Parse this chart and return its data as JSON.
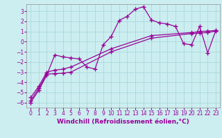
{
  "title": "",
  "xlabel": "Windchill (Refroidissement éolien,°C)",
  "ylabel": "",
  "bg_color": "#cceef0",
  "line_color": "#990099",
  "grid_color": "#aad8dc",
  "xlim": [
    -0.5,
    23.5
  ],
  "ylim": [
    -6.5,
    3.7
  ],
  "yticks": [
    -6,
    -5,
    -4,
    -3,
    -2,
    -1,
    0,
    1,
    2,
    3
  ],
  "xticks": [
    0,
    1,
    2,
    3,
    4,
    5,
    6,
    7,
    8,
    9,
    10,
    11,
    12,
    13,
    14,
    15,
    16,
    17,
    18,
    19,
    20,
    21,
    22,
    23
  ],
  "line1_x": [
    0,
    1,
    2,
    3,
    4,
    5,
    6,
    7,
    8,
    9,
    10,
    11,
    12,
    13,
    14,
    15,
    16,
    17,
    18,
    19,
    20,
    21,
    22,
    23
  ],
  "line1_y": [
    -6.0,
    -4.8,
    -3.3,
    -1.3,
    -1.5,
    -1.6,
    -1.7,
    -2.5,
    -2.7,
    -0.3,
    0.5,
    2.1,
    2.5,
    3.2,
    3.45,
    2.15,
    1.85,
    1.75,
    1.5,
    -0.2,
    -0.3,
    1.5,
    -1.1,
    1.1
  ],
  "line2_x": [
    0,
    1,
    2,
    3,
    4,
    5,
    10,
    15,
    20,
    21,
    22,
    23
  ],
  "line2_y": [
    -5.8,
    -4.6,
    -3.2,
    -3.15,
    -3.1,
    -3.0,
    -1.0,
    0.35,
    0.8,
    0.85,
    0.9,
    1.05
  ],
  "line3_x": [
    0,
    1,
    2,
    3,
    4,
    5,
    10,
    15,
    20,
    21,
    22,
    23
  ],
  "line3_y": [
    -5.5,
    -4.4,
    -3.0,
    -2.8,
    -2.7,
    -2.5,
    -0.7,
    0.6,
    0.9,
    1.0,
    1.05,
    1.1
  ],
  "marker": "+",
  "markersize": 4,
  "linewidth": 0.9,
  "tick_fontsize": 5.5,
  "xlabel_fontsize": 6.5
}
